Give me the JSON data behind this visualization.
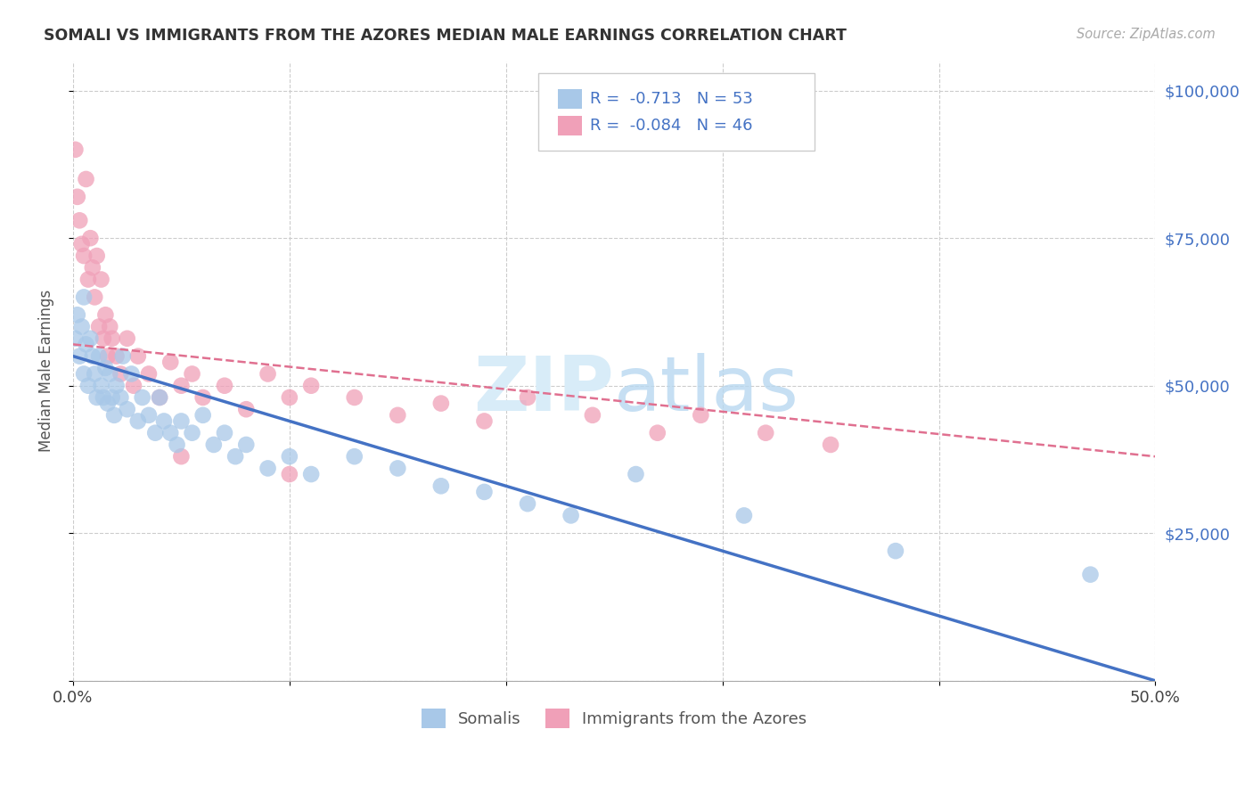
{
  "title": "SOMALI VS IMMIGRANTS FROM THE AZORES MEDIAN MALE EARNINGS CORRELATION CHART",
  "source": "Source: ZipAtlas.com",
  "ylabel": "Median Male Earnings",
  "xlim": [
    0,
    0.5
  ],
  "ylim": [
    0,
    105000
  ],
  "r_somali": -0.713,
  "n_somali": 53,
  "r_azores": -0.084,
  "n_azores": 46,
  "legend_labels": [
    "Somalis",
    "Immigrants from the Azores"
  ],
  "blue_color": "#a8c8e8",
  "pink_color": "#f0a0b8",
  "blue_line_color": "#4472c4",
  "pink_line_color": "#e07090",
  "label_color": "#4472c4",
  "watermark_color": "#d8ecf8",
  "background_color": "#ffffff",
  "somali_x": [
    0.001,
    0.002,
    0.003,
    0.004,
    0.005,
    0.005,
    0.006,
    0.007,
    0.008,
    0.009,
    0.01,
    0.011,
    0.012,
    0.013,
    0.014,
    0.015,
    0.016,
    0.017,
    0.018,
    0.019,
    0.02,
    0.022,
    0.023,
    0.025,
    0.027,
    0.03,
    0.032,
    0.035,
    0.038,
    0.04,
    0.042,
    0.045,
    0.048,
    0.05,
    0.055,
    0.06,
    0.065,
    0.07,
    0.075,
    0.08,
    0.09,
    0.1,
    0.11,
    0.13,
    0.15,
    0.17,
    0.19,
    0.21,
    0.23,
    0.26,
    0.31,
    0.38,
    0.47
  ],
  "somali_y": [
    58000,
    62000,
    55000,
    60000,
    52000,
    65000,
    57000,
    50000,
    58000,
    55000,
    52000,
    48000,
    55000,
    50000,
    48000,
    53000,
    47000,
    52000,
    48000,
    45000,
    50000,
    48000,
    55000,
    46000,
    52000,
    44000,
    48000,
    45000,
    42000,
    48000,
    44000,
    42000,
    40000,
    44000,
    42000,
    45000,
    40000,
    42000,
    38000,
    40000,
    36000,
    38000,
    35000,
    38000,
    36000,
    33000,
    32000,
    30000,
    28000,
    35000,
    28000,
    22000,
    18000
  ],
  "azores_x": [
    0.001,
    0.002,
    0.003,
    0.004,
    0.005,
    0.006,
    0.007,
    0.008,
    0.009,
    0.01,
    0.011,
    0.012,
    0.013,
    0.014,
    0.015,
    0.016,
    0.017,
    0.018,
    0.02,
    0.022,
    0.025,
    0.028,
    0.03,
    0.035,
    0.04,
    0.045,
    0.05,
    0.055,
    0.06,
    0.07,
    0.08,
    0.09,
    0.1,
    0.11,
    0.13,
    0.15,
    0.17,
    0.19,
    0.21,
    0.24,
    0.27,
    0.29,
    0.32,
    0.35,
    0.05,
    0.1
  ],
  "azores_y": [
    90000,
    82000,
    78000,
    74000,
    72000,
    85000,
    68000,
    75000,
    70000,
    65000,
    72000,
    60000,
    68000,
    58000,
    62000,
    55000,
    60000,
    58000,
    55000,
    52000,
    58000,
    50000,
    55000,
    52000,
    48000,
    54000,
    50000,
    52000,
    48000,
    50000,
    46000,
    52000,
    48000,
    50000,
    48000,
    45000,
    47000,
    44000,
    48000,
    45000,
    42000,
    45000,
    42000,
    40000,
    38000,
    35000
  ],
  "somali_trendline": [
    55000,
    0
  ],
  "azores_trendline": [
    57000,
    38000
  ]
}
